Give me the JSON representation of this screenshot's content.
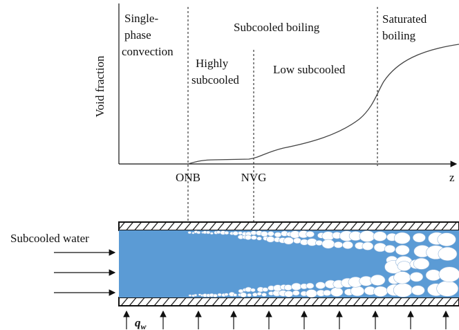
{
  "axis": {
    "y_label": "Void fraction",
    "x_label": "z"
  },
  "regions": {
    "single_phase": [
      "Single-",
      "phase",
      "convection"
    ],
    "subcooled_boiling": "Subcooled boiling",
    "saturated_boiling": [
      "Saturated",
      "boiling"
    ],
    "highly_subcooled": [
      "Highly",
      "subcooled"
    ],
    "low_subcooled": "Low subcooled"
  },
  "markers": [
    "ONB",
    "NVG"
  ],
  "pipe": {
    "inlet_label": "Subcooled water",
    "heat_flux": {
      "symbol": "q",
      "subscript": "w"
    }
  }
}
